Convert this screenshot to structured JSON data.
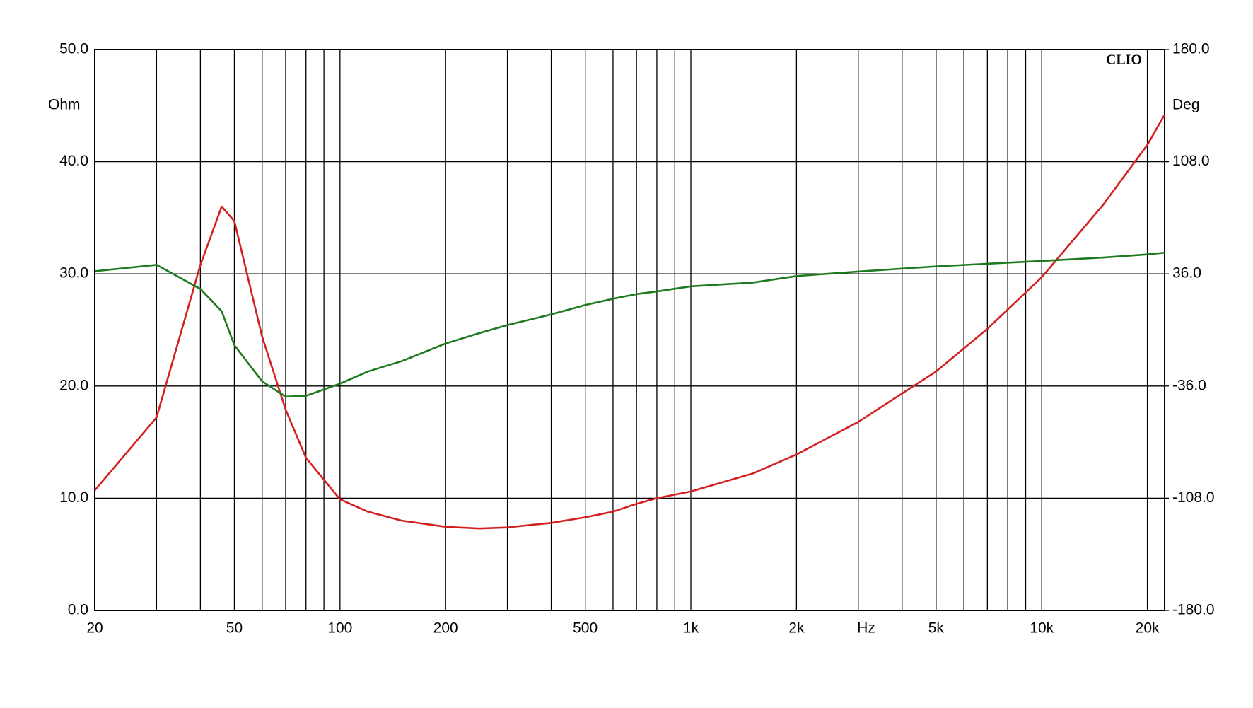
{
  "chart_data": {
    "type": "line",
    "brand": "CLIO",
    "ylabel": "Ohm",
    "y2label": "Deg",
    "xlabel": "Hz",
    "log_x": true,
    "grid": true,
    "x": [
      20,
      30,
      40,
      46,
      50,
      60,
      70,
      80,
      100,
      120,
      150,
      200,
      250,
      300,
      400,
      500,
      600,
      700,
      800,
      1000,
      1500,
      2000,
      3000,
      5000,
      7000,
      10000,
      15000,
      20000,
      22400
    ],
    "series": [
      {
        "color": "#d42020",
        "axis": "y",
        "values": [
          10.7,
          17.2,
          30.8,
          36.0,
          34.7,
          24.4,
          17.9,
          13.6,
          9.9,
          8.8,
          8.0,
          7.45,
          7.3,
          7.4,
          7.8,
          8.3,
          8.8,
          9.5,
          10.0,
          10.6,
          12.2,
          13.9,
          16.8,
          21.3,
          25.1,
          29.7,
          36.2,
          41.5,
          44.2
        ]
      },
      {
        "color": "#1f7a1f",
        "axis": "y2",
        "values": [
          37.7,
          41.8,
          26.3,
          12,
          -9.8,
          -33,
          -42.8,
          -42.3,
          -34.5,
          -26.7,
          -20,
          -8.7,
          -2,
          3.1,
          10,
          16,
          20,
          23,
          24.7,
          28,
          30.4,
          34.6,
          37.5,
          40.8,
          42.5,
          44.3,
          46.5,
          48.5,
          49.6
        ]
      }
    ],
    "xlim": [
      20,
      22400
    ],
    "xticks": [
      20,
      50,
      100,
      200,
      500,
      {
        "value": 1000,
        "label": "1k"
      },
      {
        "value": 2000,
        "label": "2k"
      },
      {
        "value": 5000,
        "label": "5k"
      },
      {
        "value": 10000,
        "label": "10k"
      },
      {
        "value": 20000,
        "label": "20k"
      }
    ],
    "xgrid": [
      30,
      40,
      60,
      70,
      80,
      90,
      300,
      400,
      600,
      700,
      800,
      900,
      3000,
      4000,
      6000,
      7000,
      8000,
      9000
    ],
    "ylim": [
      0,
      50
    ],
    "yticks": [
      {
        "value": 0,
        "label": "0.0"
      },
      {
        "value": 10,
        "label": "10.0"
      },
      {
        "value": 20,
        "label": "20.0"
      },
      {
        "value": 30,
        "label": "30.0"
      },
      {
        "value": 40,
        "label": "40.0"
      },
      {
        "value": 50,
        "label": "50.0"
      }
    ],
    "y2lim": [
      -180,
      180
    ],
    "y2ticks": [
      {
        "value": -180,
        "label": "-180.0"
      },
      {
        "value": -108,
        "label": "-108.0"
      },
      {
        "value": -36,
        "label": "-36.0"
      },
      {
        "value": 36,
        "label": "36.0"
      },
      {
        "value": 108,
        "label": "108.0"
      },
      {
        "value": 180,
        "label": "180.0"
      }
    ]
  }
}
